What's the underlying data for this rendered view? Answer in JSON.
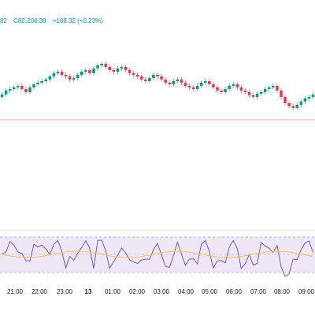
{
  "header": {
    "prev": "82",
    "close": "C82,206.38",
    "change": "+188.32 (+0.23%)"
  },
  "colors": {
    "up": "#089981",
    "down": "#f23645",
    "rsi_line": "#7e57c2",
    "rsi_ma": "#f7c55a",
    "rsi_band": "#ede7f6",
    "ref_line": "#f7a1a8"
  },
  "time_axis": [
    {
      "label": "21:00"
    },
    {
      "label": "22:00"
    },
    {
      "label": "23:00"
    },
    {
      "label": "13",
      "bold": true
    },
    {
      "label": "01:00"
    },
    {
      "label": "02:00"
    },
    {
      "label": "03:00"
    },
    {
      "label": "04:00"
    },
    {
      "label": "05:00"
    },
    {
      "label": "06:00"
    },
    {
      "label": "07:00"
    },
    {
      "label": "08:00"
    },
    {
      "label": "09:00"
    }
  ],
  "chart_data": {
    "type": "candlestick",
    "series_path": [
      118,
      115,
      110,
      108,
      106,
      104,
      108,
      112,
      106,
      102,
      100,
      98,
      96,
      92,
      88,
      86,
      90,
      92,
      96,
      94,
      90,
      86,
      84,
      88,
      82,
      78,
      76,
      80,
      84,
      86,
      82,
      80,
      84,
      88,
      90,
      92,
      96,
      98,
      94,
      90,
      92,
      96,
      100,
      102,
      98,
      96,
      100,
      104,
      106,
      108,
      104,
      100,
      98,
      102,
      106,
      110,
      112,
      108,
      104,
      102,
      106,
      110,
      112,
      116,
      118,
      114,
      112,
      108,
      106,
      104,
      110,
      118,
      126,
      130,
      132,
      128,
      124,
      120,
      118
    ]
  }
}
